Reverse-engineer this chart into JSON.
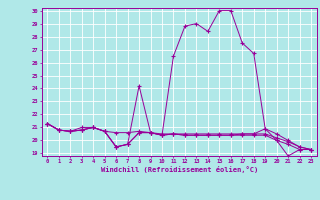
{
  "xlabel": "Windchill (Refroidissement éolien,°C)",
  "bg_color": "#b0e8e8",
  "line_color": "#990099",
  "grid_color": "#ffffff",
  "x_hours": [
    0,
    1,
    2,
    3,
    4,
    5,
    6,
    7,
    8,
    9,
    10,
    11,
    12,
    13,
    14,
    15,
    16,
    17,
    18,
    19,
    20,
    21,
    22,
    23
  ],
  "series1": [
    21.3,
    20.8,
    20.7,
    20.8,
    21.0,
    20.7,
    19.5,
    19.7,
    24.2,
    20.6,
    20.4,
    26.5,
    28.8,
    29.0,
    28.4,
    30.0,
    30.0,
    27.5,
    26.7,
    20.9,
    20.0,
    18.8,
    19.3,
    19.3
  ],
  "series2": [
    21.3,
    20.8,
    20.7,
    20.8,
    21.0,
    20.7,
    19.5,
    19.7,
    20.6,
    20.6,
    20.4,
    20.5,
    20.4,
    20.4,
    20.4,
    20.4,
    20.4,
    20.4,
    20.4,
    20.4,
    20.0,
    19.7,
    19.3,
    19.3
  ],
  "series3": [
    21.3,
    20.8,
    20.7,
    20.8,
    21.0,
    20.7,
    19.5,
    19.7,
    20.6,
    20.6,
    20.4,
    20.5,
    20.4,
    20.4,
    20.4,
    20.4,
    20.4,
    20.5,
    20.5,
    20.9,
    20.5,
    20.0,
    19.5,
    19.3
  ],
  "series4": [
    21.3,
    20.8,
    20.7,
    21.0,
    21.0,
    20.7,
    20.6,
    20.6,
    20.7,
    20.6,
    20.5,
    20.5,
    20.5,
    20.5,
    20.5,
    20.5,
    20.5,
    20.5,
    20.5,
    20.5,
    20.2,
    19.9,
    19.5,
    19.3
  ],
  "ylim": [
    19,
    30
  ],
  "yticks": [
    19,
    20,
    21,
    22,
    23,
    24,
    25,
    26,
    27,
    28,
    29,
    30
  ],
  "xlim": [
    0,
    23
  ]
}
